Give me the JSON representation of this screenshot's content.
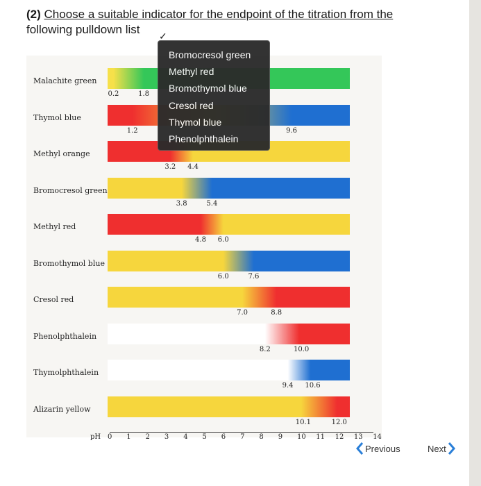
{
  "question": {
    "prefix": "(2)",
    "text_underlined": "Choose a suitable indicator for the endpoint of the titration from the",
    "text_line2": "following pulldown list",
    "check": "✓"
  },
  "dropdown": {
    "options": [
      "Bromocresol green",
      "Methyl red",
      "Bromothymol blue",
      "Cresol red",
      "Thymol blue",
      "Phenolphthalein"
    ]
  },
  "chart_data": {
    "type": "table",
    "title": "",
    "xlabel": "pH",
    "xlim": [
      0,
      14
    ],
    "ticks": [
      "0",
      "1",
      "2",
      "3",
      "4",
      "5",
      "6",
      "7",
      "8",
      "9",
      "10",
      "11",
      "12",
      "13",
      "14"
    ],
    "indicators": [
      {
        "name": "Malachite green",
        "ranges": [
          "0.2",
          "1.8"
        ],
        "colors": [
          "#f6e04a",
          "#34c759"
        ]
      },
      {
        "name": "Thymol blue",
        "ranges": [
          "1.2",
          "9.6"
        ],
        "colors": [
          "#ef2f2f",
          "#f6d63d",
          "#1f6fd1"
        ]
      },
      {
        "name": "Methyl orange",
        "ranges": [
          "3.2",
          "4.4"
        ],
        "colors": [
          "#ef2f2f",
          "#f6d63d"
        ]
      },
      {
        "name": "Bromocresol green",
        "ranges": [
          "3.8",
          "5.4"
        ],
        "colors": [
          "#f6d63d",
          "#1f6fd1"
        ]
      },
      {
        "name": "Methyl red",
        "ranges": [
          "4.8",
          "6.0"
        ],
        "colors": [
          "#ef2f2f",
          "#f6d63d"
        ]
      },
      {
        "name": "Bromothymol blue",
        "ranges": [
          "6.0",
          "7.6"
        ],
        "colors": [
          "#f6d63d",
          "#1f6fd1"
        ]
      },
      {
        "name": "Cresol red",
        "ranges": [
          "7.0",
          "8.8"
        ],
        "colors": [
          "#f6d63d",
          "#ef2f2f"
        ]
      },
      {
        "name": "Phenolphthalein",
        "ranges": [
          "8.2",
          "10.0"
        ],
        "colors": [
          "#ffffff",
          "#ef2f2f"
        ]
      },
      {
        "name": "Thymolphthalein",
        "ranges": [
          "9.4",
          "10.6"
        ],
        "colors": [
          "#ffffff",
          "#1f6fd1"
        ]
      },
      {
        "name": "Alizarin yellow",
        "ranges": [
          "10.1",
          "12.0"
        ],
        "colors": [
          "#f6d63d",
          "#ef2f2f"
        ]
      }
    ]
  },
  "nav": {
    "previous": "Previous",
    "next": "Next"
  },
  "colors": {
    "red": "#ef2f2f",
    "yellow": "#f6d63d",
    "green": "#34c759",
    "blue": "#1f6fd1"
  }
}
